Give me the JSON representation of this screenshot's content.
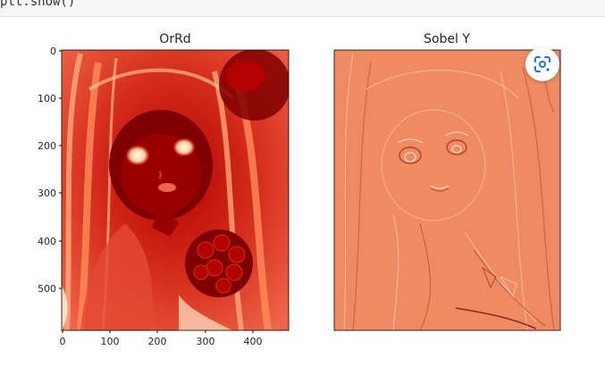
{
  "code": {
    "line": "plt.show()"
  },
  "chart_data": [
    {
      "type": "heatmap",
      "title": "OrRd",
      "colormap": "OrRd",
      "ylim": [
        600,
        0
      ],
      "xlim": [
        0,
        480
      ],
      "xticks": [
        "0",
        "100",
        "200",
        "300",
        "400"
      ],
      "yticks": [
        "0",
        "100",
        "200",
        "300",
        "400",
        "500"
      ]
    },
    {
      "type": "heatmap",
      "title": "Sobel Y",
      "colormap": "coolwarm-orange"
    }
  ],
  "colors": {
    "orrd_dark": "#7f0000",
    "orrd_mid": "#d7301f",
    "orrd_light": "#fdd49e",
    "sobel_base": "#ef8a62",
    "lens_accent": "#1a73e8"
  },
  "icons": {
    "lens": "google-lens-icon"
  }
}
